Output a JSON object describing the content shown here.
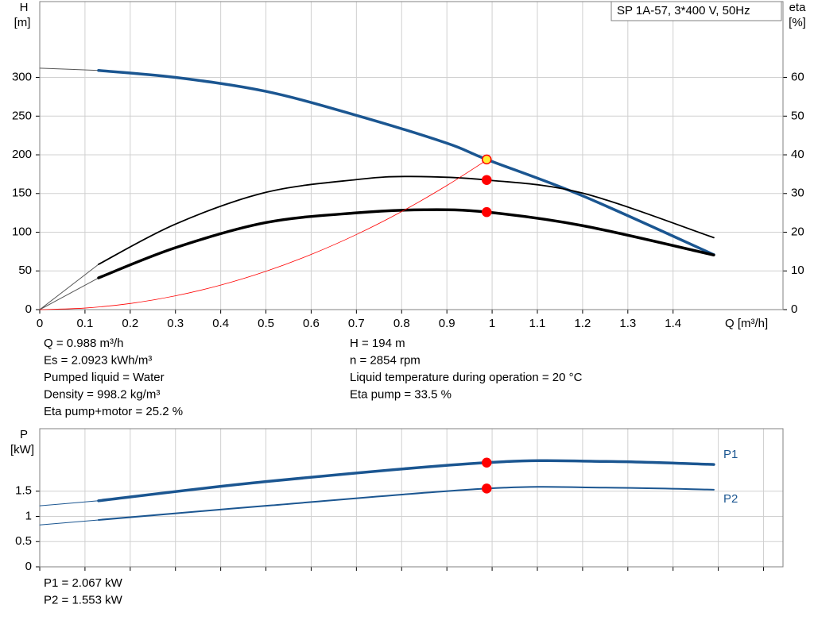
{
  "chart_data": [
    {
      "type": "line",
      "title": "SP 1A-57, 3*400 V, 50Hz",
      "ylabel": "H",
      "yunit": "[m]",
      "y2label": "eta",
      "y2unit": "[%]",
      "xlabel": "Q [m³/h]",
      "xlim": [
        0,
        1.643
      ],
      "xticks": [
        0,
        0.1,
        0.2,
        0.3,
        0.4,
        0.5,
        0.6,
        0.7,
        0.8,
        0.9,
        1.0,
        1.1,
        1.2,
        1.3,
        1.4
      ],
      "xtick_labels": true,
      "ylim": [
        0,
        398
      ],
      "yticks": [
        0,
        50,
        100,
        150,
        200,
        250,
        300
      ],
      "y2lim": [
        0,
        79.6
      ],
      "y2ticks": [
        0,
        10,
        20,
        30,
        40,
        50,
        60
      ],
      "grid": true,
      "series": [
        {
          "x": [
            0,
            0.13
          ],
          "values": [
            312,
            309
          ],
          "color": "#555555",
          "width": 1
        },
        {
          "x": [
            0.13,
            0.3,
            0.5,
            0.7,
            0.9,
            0.988,
            1.2,
            1.49
          ],
          "values": [
            309,
            300,
            282,
            251,
            215,
            194,
            147,
            71
          ],
          "color": "#1b5691",
          "width": 3.5
        },
        {
          "x": [
            0,
            0.13
          ],
          "values": [
            0,
            11.7
          ],
          "axis": "y2",
          "color": "#555555",
          "width": 1
        },
        {
          "x": [
            0.13,
            0.3,
            0.5,
            0.7,
            0.82,
            0.988,
            1.2,
            1.49
          ],
          "values": [
            11.7,
            22.1,
            30.3,
            33.6,
            34.4,
            33.5,
            30.1,
            18.6
          ],
          "axis": "y2",
          "color": "#000000",
          "width": 1.8
        },
        {
          "x": [
            0,
            0.13
          ],
          "values": [
            0,
            8.2
          ],
          "axis": "y2",
          "color": "#555555",
          "width": 1
        },
        {
          "x": [
            0.13,
            0.3,
            0.5,
            0.7,
            0.85,
            0.988,
            1.2,
            1.49
          ],
          "values": [
            8.2,
            16,
            22.5,
            25,
            25.8,
            25.2,
            21.7,
            14.1
          ],
          "axis": "y2",
          "color": "#000000",
          "width": 3.5
        },
        {
          "x": [
            0,
            0.1,
            0.2,
            0.3,
            0.4,
            0.5,
            0.6,
            0.7,
            0.8,
            0.9,
            0.99
          ],
          "values": [
            0,
            2,
            7.9,
            17.8,
            31.7,
            49.5,
            71.3,
            97,
            126.7,
            160.4,
            194
          ],
          "color": "#ff0000",
          "width": 0.8
        }
      ],
      "points": [
        {
          "x": 0.988,
          "y": 194,
          "color": "#ffee33"
        },
        {
          "x": 0.988,
          "y": 33.5,
          "axis": "y2",
          "color": "#ff0000"
        },
        {
          "x": 0.988,
          "y": 25.2,
          "axis": "y2",
          "color": "#ff0000"
        }
      ]
    },
    {
      "type": "line",
      "ylabel": "P",
      "yunit": "[kW]",
      "xlim": [
        0,
        1.643
      ],
      "xticks": [
        0,
        0.1,
        0.2,
        0.3,
        0.4,
        0.5,
        0.6,
        0.7,
        0.8,
        0.9,
        1.0,
        1.1,
        1.2,
        1.3,
        1.4,
        1.5,
        1.6
      ],
      "xtick_labels": false,
      "ylim": [
        0,
        2.74
      ],
      "yticks": [
        0,
        0.5,
        1.0,
        1.5
      ],
      "grid": true,
      "series": [
        {
          "x": [
            0,
            0.13
          ],
          "values": [
            1.21,
            1.31
          ],
          "color": "#1b5691",
          "width": 1
        },
        {
          "name": "P1",
          "x": [
            0.13,
            0.5,
            0.988,
            1.25,
            1.49
          ],
          "values": [
            1.31,
            1.69,
            2.067,
            2.09,
            2.03
          ],
          "color": "#1b5691",
          "width": 3.5
        },
        {
          "x": [
            0,
            0.13
          ],
          "values": [
            0.83,
            0.93
          ],
          "color": "#1b5691",
          "width": 1
        },
        {
          "name": "P2",
          "x": [
            0.13,
            0.5,
            0.988,
            1.25,
            1.49
          ],
          "values": [
            0.93,
            1.21,
            1.553,
            1.57,
            1.53
          ],
          "color": "#1b5691",
          "width": 2
        }
      ],
      "points": [
        {
          "x": 0.988,
          "y": 2.067,
          "color": "#ff0000"
        },
        {
          "x": 0.988,
          "y": 1.553,
          "color": "#ff0000"
        }
      ]
    }
  ],
  "info": {
    "left": [
      "Q = 0.988 m³/h",
      "Es = 2.0923 kWh/m³",
      "Pumped liquid = Water",
      "Density = 998.2 kg/m³",
      "Eta pump+motor = 25.2 %"
    ],
    "right": [
      "H = 194 m",
      "n = 2854 rpm",
      "Liquid temperature during operation = 20 °C",
      "Eta pump = 33.5 %"
    ],
    "bottom": [
      "P1 = 2.067 kW",
      "P2 = 1.553 kW"
    ]
  }
}
